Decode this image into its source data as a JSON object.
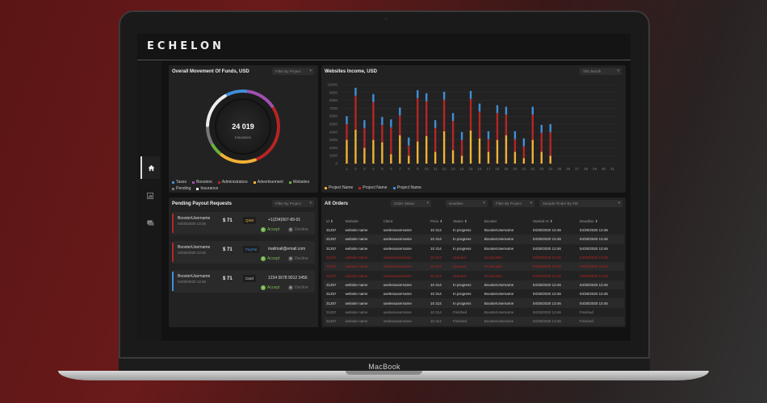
{
  "device": {
    "label": "MacBook"
  },
  "app": {
    "logo": "ECHELON"
  },
  "colors": {
    "accent_red": "#b52525",
    "accent_yellow": "#f2b136",
    "accent_blue": "#3f8fd8",
    "accept_green": "#76b852"
  },
  "funds": {
    "title": "Overall Movement Of Funds, USD",
    "filter": "Filter By Project",
    "total": "24 019",
    "label": "Insurance",
    "segments": [
      {
        "name": "Taxes",
        "color": "#3f8fd8",
        "value": 10
      },
      {
        "name": "Boosters",
        "color": "#a050b0",
        "value": 14
      },
      {
        "name": "Administrators",
        "color": "#b52525",
        "value": 28
      },
      {
        "name": "Advertisement",
        "color": "#f2b136",
        "value": 17
      },
      {
        "name": "Websites",
        "color": "#6aaf3c",
        "value": 6
      },
      {
        "name": "Pending",
        "color": "#777777",
        "value": 8
      },
      {
        "name": "Insurance",
        "color": "#eeeeee",
        "value": 17
      }
    ]
  },
  "income": {
    "title": "Websites Income, USD",
    "filter": "This Month",
    "legend": [
      "Project Name",
      "Project Name",
      "Project Name"
    ]
  },
  "chart_data": {
    "type": "bar",
    "title": "Websites Income, USD",
    "categories": [
      "1",
      "2",
      "3",
      "4",
      "5",
      "6",
      "7",
      "8",
      "9",
      "10",
      "11",
      "12",
      "13",
      "14",
      "15",
      "16",
      "17",
      "18",
      "19",
      "20",
      "21",
      "22",
      "23",
      "24",
      "25",
      "26",
      "27",
      "28",
      "29",
      "30",
      "31"
    ],
    "ylim": [
      0,
      10000
    ],
    "yticks": [
      0,
      1000,
      2000,
      3000,
      4000,
      5000,
      6000,
      7000,
      8000,
      9000,
      10000
    ],
    "stacked": true,
    "series": [
      {
        "name": "Project Name",
        "color": "#f2b136",
        "values": [
          3000,
          4300,
          2000,
          3000,
          2700,
          1200,
          3600,
          1000,
          2800,
          3500,
          1500,
          4100,
          1700,
          1000,
          4200,
          3200,
          1500,
          3000,
          3600,
          1500,
          700,
          3000,
          1500,
          1000,
          0,
          0,
          0,
          0,
          0,
          0,
          0
        ]
      },
      {
        "name": "Project Name",
        "color": "#b52525",
        "values": [
          2000,
          4300,
          2500,
          4800,
          2200,
          3400,
          2500,
          1300,
          5500,
          4400,
          3000,
          4000,
          3700,
          2000,
          4000,
          3400,
          1600,
          3400,
          2600,
          1600,
          1500,
          3200,
          2400,
          3000,
          0,
          0,
          0,
          0,
          0,
          0,
          0
        ]
      },
      {
        "name": "Project Name",
        "color": "#3f8fd8",
        "values": [
          1000,
          1000,
          1000,
          1000,
          1000,
          1000,
          1000,
          1000,
          1000,
          1000,
          1000,
          1000,
          1000,
          1000,
          1000,
          1000,
          1000,
          1000,
          1000,
          1000,
          1000,
          1000,
          1000,
          1000,
          0,
          0,
          0,
          0,
          0,
          0,
          0
        ]
      }
    ]
  },
  "payouts": {
    "title": "Pending Payout Requests",
    "filter": "Filter By Project",
    "items": [
      {
        "user": "BoosterUsername",
        "date": "04/30/2020 13:46",
        "amount": "$ 71",
        "method": "QIWI",
        "method_color": "#f2b136",
        "account": "+1(234)567-89-01",
        "accept": "Accept",
        "decline": "Decline",
        "bar_color": "#b52525"
      },
      {
        "user": "BoosterUsername",
        "date": "04/30/2020 13:46",
        "amount": "$ 71",
        "method": "PayPal",
        "method_color": "#3f8fd8",
        "account": "mailmail@email.com",
        "accept": "Accept",
        "decline": "Decline",
        "bar_color": "#b52525"
      },
      {
        "user": "BoosterUsername",
        "date": "04/30/2020 13:46",
        "amount": "$ 71",
        "method": "Card",
        "method_color": "#dddddd",
        "account": "1234 5678 9012 3456",
        "accept": "Accept",
        "decline": "Decline",
        "bar_color": "#3f8fd8"
      }
    ]
  },
  "orders": {
    "title": "All Orders",
    "filters": [
      "Order Status",
      "Deadline",
      "Filter By Project",
      "Sample Finder By #ID"
    ],
    "columns": [
      "Id ⬍",
      "Website",
      "Client",
      "Price ⬍",
      "Status ⬍",
      "Booster",
      "Started At ⬍",
      "Deadline ⬍"
    ],
    "rows": [
      {
        "style": "",
        "cells": [
          "31257",
          "website name",
          "uselessusername",
          "10 314",
          "In progress",
          "BoosterUsername",
          "04/30/2020 13:46",
          "04/30/2020 13:46"
        ]
      },
      {
        "style": "alt",
        "cells": [
          "31257",
          "website name",
          "uselessusername",
          "10 314",
          "In progress",
          "BoosterUsername",
          "04/30/2020 13:46",
          "04/30/2020 13:46"
        ]
      },
      {
        "style": "",
        "cells": [
          "31257",
          "website name",
          "uselessusername",
          "10 314",
          "In progress",
          "BoosterUsername",
          "04/30/2020 13:46",
          "04/30/2020 13:46"
        ]
      },
      {
        "style": "red",
        "cells": [
          "31257",
          "website name",
          "uselessusername",
          "10 314",
          "Queued",
          "No Booster",
          "04/30/2020 13:46",
          "04/30/2020 13:46"
        ]
      },
      {
        "style": "red alt",
        "cells": [
          "31257",
          "website name",
          "uselessusername",
          "10 314",
          "Queued",
          "No Booster",
          "04/30/2020 13:46",
          "04/30/2020 13:46"
        ]
      },
      {
        "style": "red",
        "cells": [
          "31257",
          "website name",
          "uselessusername",
          "10 314",
          "Queued",
          "No Booster",
          "04/30/2020 13:46",
          "04/30/2020 13:46"
        ]
      },
      {
        "style": "alt",
        "cells": [
          "31257",
          "website name",
          "uselessusername",
          "10 314",
          "In progress",
          "BoosterUsername",
          "04/30/2020 13:46",
          "04/30/2020 13:46"
        ]
      },
      {
        "style": "",
        "cells": [
          "31257",
          "website name",
          "uselessusername",
          "10 314",
          "In progress",
          "BoosterUsername",
          "04/30/2020 13:46",
          "04/30/2020 13:46"
        ]
      },
      {
        "style": "alt",
        "cells": [
          "31257",
          "website name",
          "uselessusername",
          "10 314",
          "In progress",
          "BoosterUsername",
          "04/30/2020 13:46",
          "04/30/2020 13:46"
        ]
      },
      {
        "style": "dim",
        "cells": [
          "31257",
          "website name",
          "uselessusername",
          "10 314",
          "Finished",
          "BoosterUsername",
          "04/30/2020 13:46",
          "Finished"
        ]
      },
      {
        "style": "dim alt",
        "cells": [
          "31257",
          "website name",
          "uselessusername",
          "10 314",
          "Finished",
          "BoosterUsername",
          "04/30/2020 13:46",
          "Finished"
        ]
      }
    ]
  }
}
